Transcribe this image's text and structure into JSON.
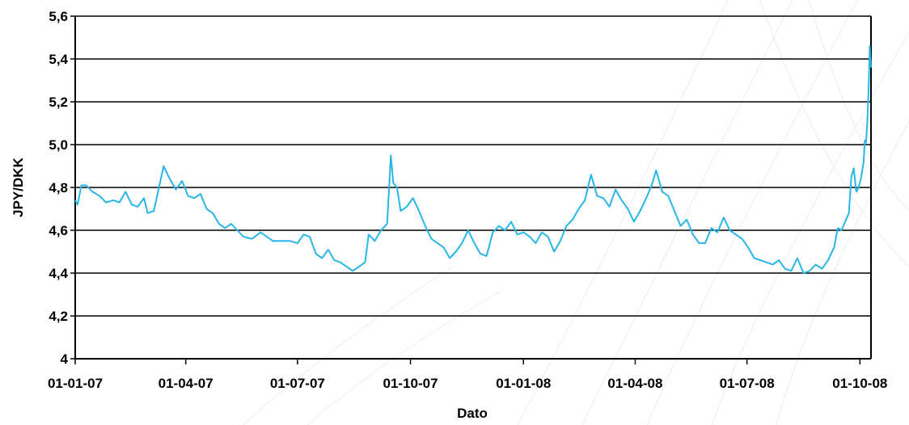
{
  "chart_data": {
    "type": "line",
    "title": "",
    "xlabel": "Dato",
    "ylabel": "JPY/DKK",
    "ylim": [
      4.0,
      5.6
    ],
    "y_ticks": [
      "4",
      "4,2",
      "4,4",
      "4,6",
      "4,8",
      "5,0",
      "5,2",
      "5,4",
      "5,6"
    ],
    "y_tick_values": [
      4.0,
      4.2,
      4.4,
      4.6,
      4.8,
      5.0,
      5.2,
      5.4,
      5.6
    ],
    "x_range": [
      "2007-01-01",
      "2008-10-10"
    ],
    "x_ticks": [
      "01-01-07",
      "01-04-07",
      "01-07-07",
      "01-10-07",
      "01-01-08",
      "01-04-08",
      "01-07-08",
      "01-10-08"
    ],
    "x_tick_dates": [
      "2007-01-01",
      "2007-04-01",
      "2007-07-01",
      "2007-10-01",
      "2008-01-01",
      "2008-04-01",
      "2008-07-01",
      "2008-10-01"
    ],
    "grid": "horizontal",
    "line_color": "#29b6e6",
    "series": [
      {
        "points": [
          [
            "2007-01-01",
            4.74
          ],
          [
            "2007-01-03",
            4.72
          ],
          [
            "2007-01-06",
            4.81
          ],
          [
            "2007-01-10",
            4.81
          ],
          [
            "2007-01-15",
            4.78
          ],
          [
            "2007-01-21",
            4.76
          ],
          [
            "2007-01-26",
            4.73
          ],
          [
            "2007-02-01",
            4.74
          ],
          [
            "2007-02-06",
            4.73
          ],
          [
            "2007-02-11",
            4.78
          ],
          [
            "2007-02-16",
            4.72
          ],
          [
            "2007-02-21",
            4.71
          ],
          [
            "2007-02-26",
            4.75
          ],
          [
            "2007-03-01",
            4.68
          ],
          [
            "2007-03-06",
            4.69
          ],
          [
            "2007-03-11",
            4.82
          ],
          [
            "2007-03-14",
            4.9
          ],
          [
            "2007-03-19",
            4.84
          ],
          [
            "2007-03-24",
            4.79
          ],
          [
            "2007-03-29",
            4.83
          ],
          [
            "2007-04-03",
            4.76
          ],
          [
            "2007-04-08",
            4.75
          ],
          [
            "2007-04-13",
            4.77
          ],
          [
            "2007-04-18",
            4.7
          ],
          [
            "2007-04-23",
            4.68
          ],
          [
            "2007-04-28",
            4.63
          ],
          [
            "2007-05-03",
            4.61
          ],
          [
            "2007-05-08",
            4.63
          ],
          [
            "2007-05-13",
            4.6
          ],
          [
            "2007-05-18",
            4.57
          ],
          [
            "2007-05-25",
            4.56
          ],
          [
            "2007-06-01",
            4.59
          ],
          [
            "2007-06-06",
            4.57
          ],
          [
            "2007-06-11",
            4.55
          ],
          [
            "2007-06-18",
            4.55
          ],
          [
            "2007-06-25",
            4.55
          ],
          [
            "2007-07-01",
            4.54
          ],
          [
            "2007-07-06",
            4.58
          ],
          [
            "2007-07-11",
            4.57
          ],
          [
            "2007-07-16",
            4.49
          ],
          [
            "2007-07-21",
            4.47
          ],
          [
            "2007-07-26",
            4.51
          ],
          [
            "2007-07-31",
            4.46
          ],
          [
            "2007-08-05",
            4.45
          ],
          [
            "2007-08-10",
            4.43
          ],
          [
            "2007-08-15",
            4.41
          ],
          [
            "2007-08-20",
            4.43
          ],
          [
            "2007-08-25",
            4.45
          ],
          [
            "2007-08-28",
            4.58
          ],
          [
            "2007-09-02",
            4.55
          ],
          [
            "2007-09-07",
            4.6
          ],
          [
            "2007-09-12",
            4.63
          ],
          [
            "2007-09-15",
            4.95
          ],
          [
            "2007-09-17",
            4.82
          ],
          [
            "2007-09-20",
            4.8
          ],
          [
            "2007-09-23",
            4.69
          ],
          [
            "2007-09-28",
            4.71
          ],
          [
            "2007-10-03",
            4.75
          ],
          [
            "2007-10-08",
            4.69
          ],
          [
            "2007-10-13",
            4.62
          ],
          [
            "2007-10-18",
            4.56
          ],
          [
            "2007-10-23",
            4.54
          ],
          [
            "2007-10-28",
            4.52
          ],
          [
            "2007-11-02",
            4.47
          ],
          [
            "2007-11-07",
            4.5
          ],
          [
            "2007-11-12",
            4.54
          ],
          [
            "2007-11-17",
            4.6
          ],
          [
            "2007-11-22",
            4.54
          ],
          [
            "2007-11-27",
            4.49
          ],
          [
            "2007-12-02",
            4.48
          ],
          [
            "2007-12-07",
            4.59
          ],
          [
            "2007-12-12",
            4.62
          ],
          [
            "2007-12-17",
            4.6
          ],
          [
            "2007-12-22",
            4.64
          ],
          [
            "2007-12-27",
            4.58
          ],
          [
            "2008-01-01",
            4.59
          ],
          [
            "2008-01-06",
            4.57
          ],
          [
            "2008-01-11",
            4.54
          ],
          [
            "2008-01-16",
            4.59
          ],
          [
            "2008-01-21",
            4.57
          ],
          [
            "2008-01-26",
            4.5
          ],
          [
            "2008-01-31",
            4.55
          ],
          [
            "2008-02-05",
            4.62
          ],
          [
            "2008-02-10",
            4.65
          ],
          [
            "2008-02-15",
            4.7
          ],
          [
            "2008-02-20",
            4.74
          ],
          [
            "2008-02-25",
            4.86
          ],
          [
            "2008-03-01",
            4.76
          ],
          [
            "2008-03-06",
            4.75
          ],
          [
            "2008-03-11",
            4.71
          ],
          [
            "2008-03-16",
            4.79
          ],
          [
            "2008-03-21",
            4.74
          ],
          [
            "2008-03-26",
            4.7
          ],
          [
            "2008-03-31",
            4.64
          ],
          [
            "2008-04-05",
            4.69
          ],
          [
            "2008-04-10",
            4.75
          ],
          [
            "2008-04-15",
            4.82
          ],
          [
            "2008-04-18",
            4.88
          ],
          [
            "2008-04-23",
            4.78
          ],
          [
            "2008-04-28",
            4.76
          ],
          [
            "2008-05-03",
            4.69
          ],
          [
            "2008-05-08",
            4.62
          ],
          [
            "2008-05-13",
            4.65
          ],
          [
            "2008-05-18",
            4.58
          ],
          [
            "2008-05-23",
            4.54
          ],
          [
            "2008-05-28",
            4.54
          ],
          [
            "2008-06-02",
            4.61
          ],
          [
            "2008-06-07",
            4.59
          ],
          [
            "2008-06-12",
            4.66
          ],
          [
            "2008-06-17",
            4.6
          ],
          [
            "2008-06-22",
            4.58
          ],
          [
            "2008-06-27",
            4.56
          ],
          [
            "2008-07-02",
            4.52
          ],
          [
            "2008-07-07",
            4.47
          ],
          [
            "2008-07-12",
            4.46
          ],
          [
            "2008-07-17",
            4.45
          ],
          [
            "2008-07-22",
            4.44
          ],
          [
            "2008-07-27",
            4.46
          ],
          [
            "2008-08-01",
            4.42
          ],
          [
            "2008-08-06",
            4.41
          ],
          [
            "2008-08-11",
            4.47
          ],
          [
            "2008-08-16",
            4.4
          ],
          [
            "2008-08-21",
            4.41
          ],
          [
            "2008-08-26",
            4.44
          ],
          [
            "2008-08-31",
            4.42
          ],
          [
            "2008-09-05",
            4.46
          ],
          [
            "2008-09-10",
            4.52
          ],
          [
            "2008-09-13",
            4.61
          ],
          [
            "2008-09-16",
            4.6
          ],
          [
            "2008-09-19",
            4.64
          ],
          [
            "2008-09-22",
            4.68
          ],
          [
            "2008-09-24",
            4.85
          ],
          [
            "2008-09-26",
            4.89
          ],
          [
            "2008-09-28",
            4.78
          ],
          [
            "2008-09-30",
            4.8
          ],
          [
            "2008-10-02",
            4.85
          ],
          [
            "2008-10-04",
            4.92
          ],
          [
            "2008-10-05",
            5.02
          ],
          [
            "2008-10-06",
            5.01
          ],
          [
            "2008-10-07",
            5.1
          ],
          [
            "2008-10-08",
            5.25
          ],
          [
            "2008-10-09",
            5.46
          ],
          [
            "2008-10-10",
            5.36
          ]
        ]
      }
    ]
  }
}
